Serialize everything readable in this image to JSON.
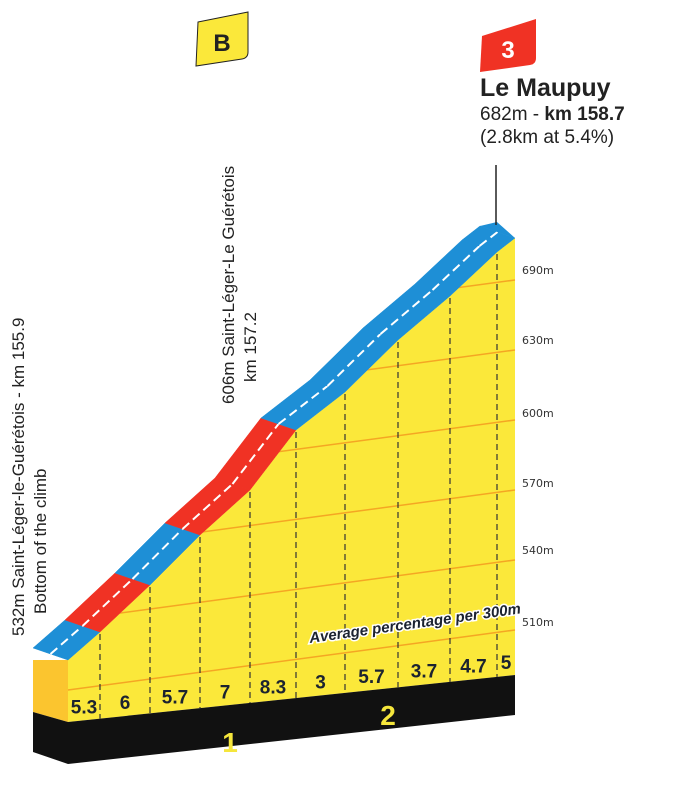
{
  "markers": {
    "sprint": "B",
    "category": "3"
  },
  "summit": {
    "name": "Le Maupuy",
    "altitude": "682m - ",
    "km": "km 158.7",
    "detail": "(2.8km at 5.4%)"
  },
  "start": {
    "line1": "532m Saint-Léger-le-Guérétois - km 155.9",
    "line2": "Bottom of the climb"
  },
  "mid": {
    "line1": "606m Saint-Léger-Le Guérétois",
    "line2": "km 157.2"
  },
  "legend": "Average percentage per 300m",
  "colors": {
    "steep": "#f03224",
    "moderate": "#1e8fd6",
    "face": "#fbe83a",
    "side": "#fbc52f",
    "base": "#111111"
  },
  "chart_data": {
    "type": "profile",
    "segments_pct": [
      "5.3",
      "6",
      "5.7",
      "7",
      "8.3",
      "3",
      "5.7",
      "3.7",
      "4.7",
      "5"
    ],
    "elevation_ticks": [
      "690m",
      "630m",
      "600m",
      "570m",
      "540m",
      "510m"
    ],
    "km_markers": [
      "1",
      "2"
    ]
  }
}
